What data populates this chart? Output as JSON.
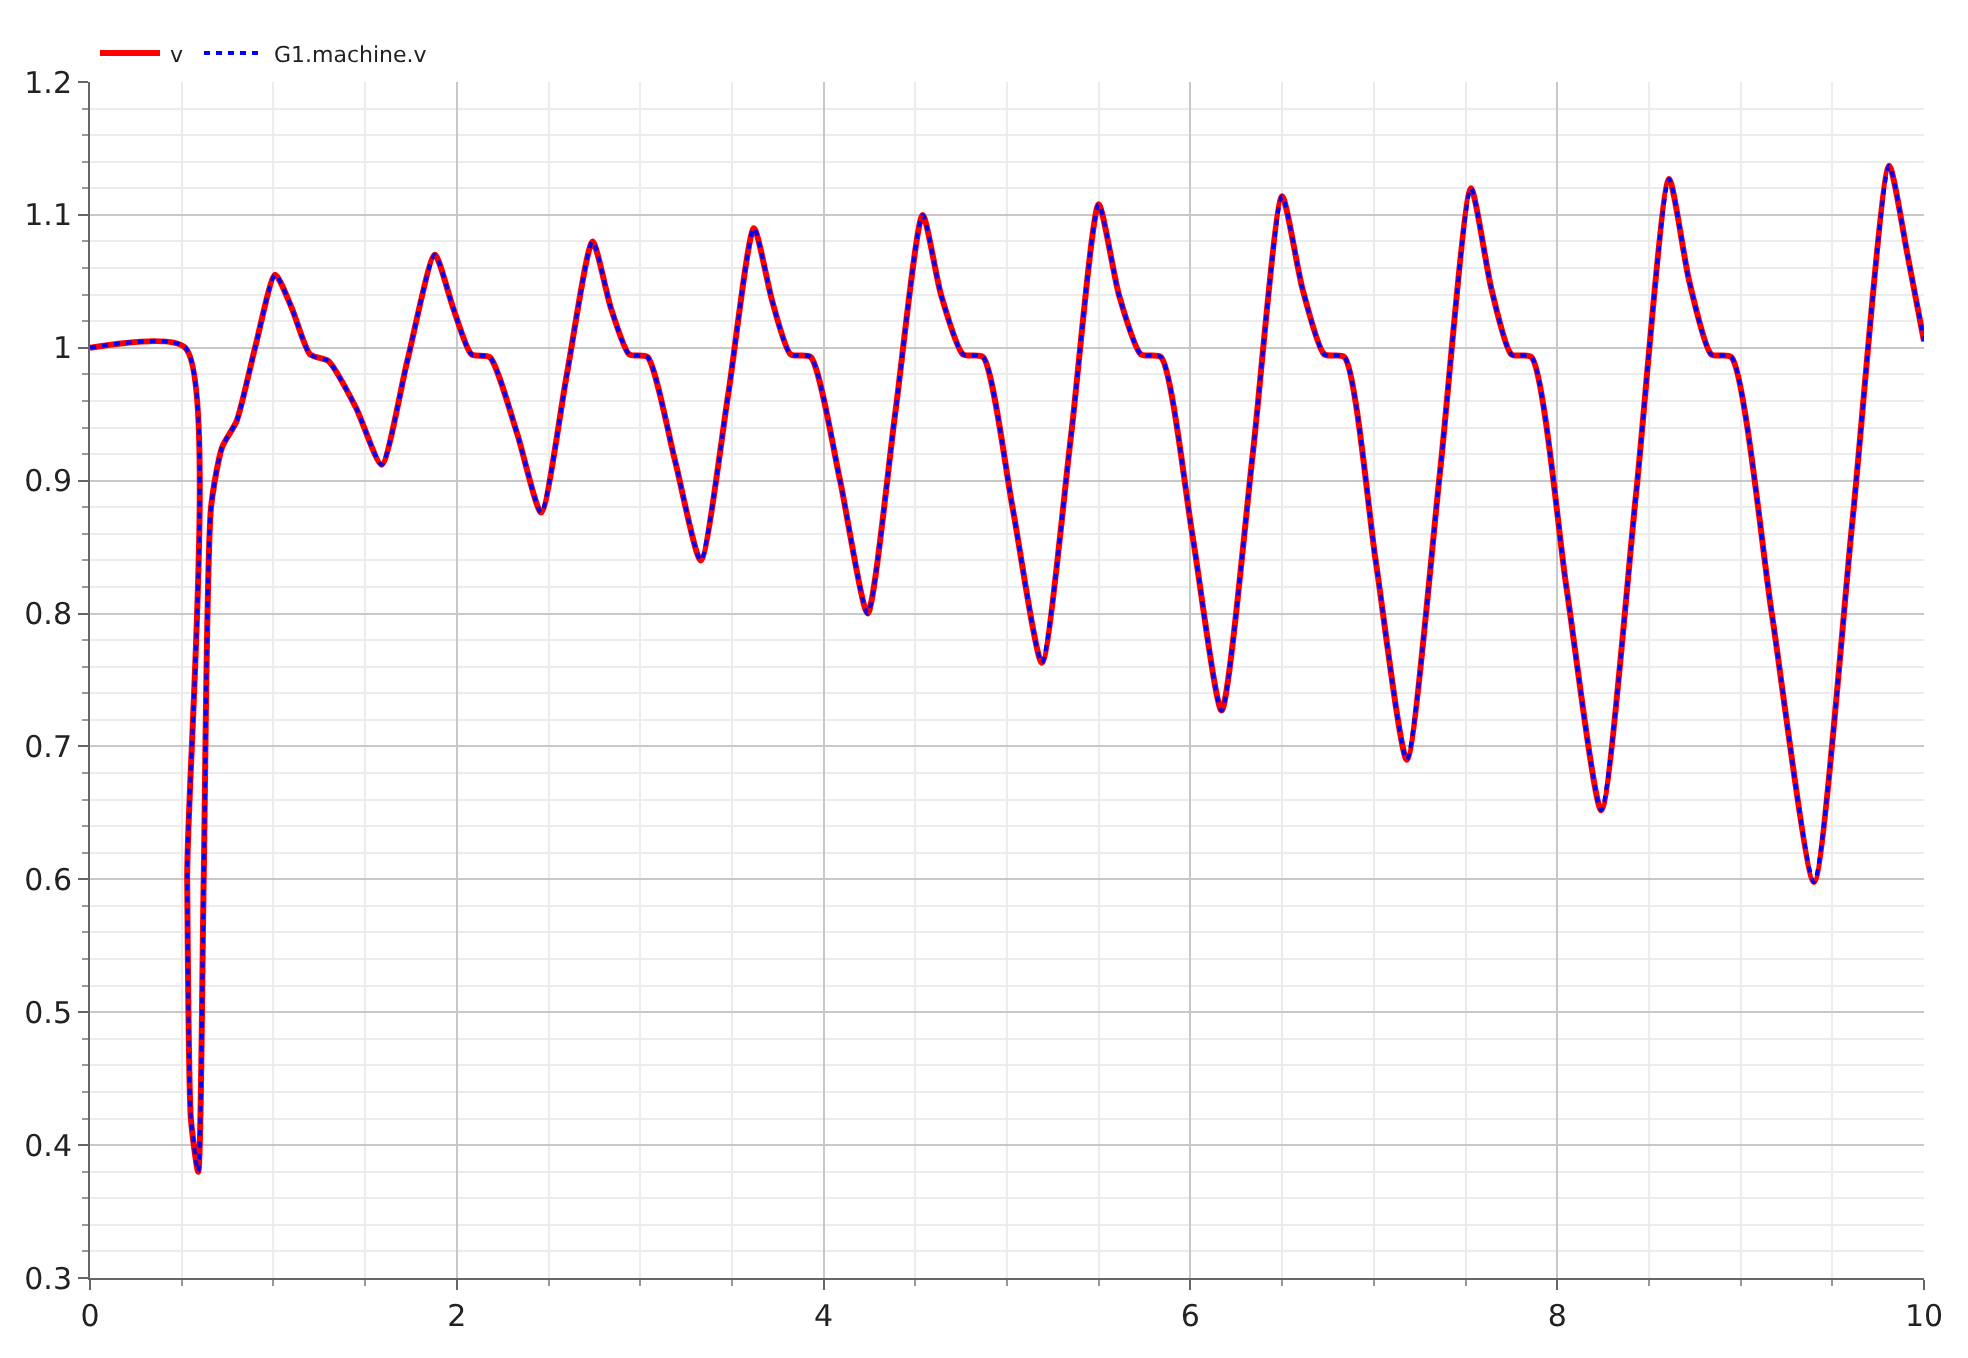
{
  "chart_data": {
    "type": "line",
    "x": [
      0,
      0.52,
      0.53,
      0.55,
      0.59,
      0.62,
      0.66,
      0.72,
      0.8,
      0.9,
      1.01,
      1.1,
      1.2,
      1.3,
      1.45,
      1.59,
      1.73,
      1.88,
      1.98,
      2.08,
      2.18,
      2.33,
      2.46,
      2.6,
      2.74,
      2.84,
      2.94,
      3.04,
      3.19,
      3.33,
      3.48,
      3.62,
      3.72,
      3.82,
      3.93,
      4.09,
      4.24,
      4.39,
      4.54,
      4.64,
      4.76,
      4.87,
      5.03,
      5.19,
      5.35,
      5.5,
      5.61,
      5.73,
      5.84,
      6.01,
      6.17,
      6.34,
      6.5,
      6.61,
      6.73,
      6.84,
      7.01,
      7.18,
      7.36,
      7.53,
      7.64,
      7.75,
      7.86,
      8.05,
      8.24,
      8.43,
      8.61,
      8.72,
      8.84,
      8.95,
      9.17,
      9.4,
      9.61,
      9.81,
      9.91,
      10
    ],
    "series": [
      {
        "name": "v",
        "color": "#ff0000",
        "line_style": "solid",
        "values": [
          1,
          1,
          0.6,
          0.42,
          0.38,
          0.6,
          0.88,
          0.925,
          0.945,
          1.0,
          1.055,
          1.03,
          0.995,
          0.99,
          0.955,
          0.912,
          0.99,
          1.07,
          1.03,
          0.995,
          0.993,
          0.935,
          0.876,
          0.98,
          1.08,
          1.03,
          0.995,
          0.993,
          0.915,
          0.84,
          0.965,
          1.09,
          1.035,
          0.995,
          0.993,
          0.9,
          0.8,
          0.95,
          1.1,
          1.04,
          0.995,
          0.993,
          0.88,
          0.763,
          0.935,
          1.108,
          1.04,
          0.995,
          0.993,
          0.86,
          0.727,
          0.92,
          1.114,
          1.045,
          0.995,
          0.993,
          0.84,
          0.69,
          0.905,
          1.12,
          1.045,
          0.995,
          0.993,
          0.82,
          0.652,
          0.89,
          1.127,
          1.05,
          0.995,
          0.993,
          0.8,
          0.598,
          0.87,
          1.137,
          1.07,
          1.005
        ]
      },
      {
        "name": "G1.machine.v",
        "color": "#0000ff",
        "line_style": "dotted",
        "values": [
          1,
          1,
          0.6,
          0.42,
          0.38,
          0.6,
          0.88,
          0.925,
          0.945,
          1.0,
          1.055,
          1.03,
          0.995,
          0.99,
          0.955,
          0.912,
          0.99,
          1.07,
          1.03,
          0.995,
          0.993,
          0.935,
          0.876,
          0.98,
          1.08,
          1.03,
          0.995,
          0.993,
          0.915,
          0.84,
          0.965,
          1.09,
          1.035,
          0.995,
          0.993,
          0.9,
          0.8,
          0.95,
          1.1,
          1.04,
          0.995,
          0.993,
          0.88,
          0.763,
          0.935,
          1.108,
          1.04,
          0.995,
          0.993,
          0.86,
          0.727,
          0.92,
          1.114,
          1.045,
          0.995,
          0.993,
          0.84,
          0.69,
          0.905,
          1.12,
          1.045,
          0.995,
          0.993,
          0.82,
          0.652,
          0.89,
          1.127,
          1.05,
          0.995,
          0.993,
          0.8,
          0.598,
          0.87,
          1.137,
          1.07,
          1.005
        ]
      }
    ],
    "xlim": [
      0,
      10
    ],
    "xticks": [
      0,
      2,
      4,
      6,
      8,
      10
    ],
    "ylim": [
      0.3,
      1.2
    ],
    "yticks": [
      0.3,
      0.4,
      0.5,
      0.6,
      0.7,
      0.8,
      0.9,
      1,
      1.1,
      1.2
    ],
    "grid": true,
    "legend": "top left"
  }
}
